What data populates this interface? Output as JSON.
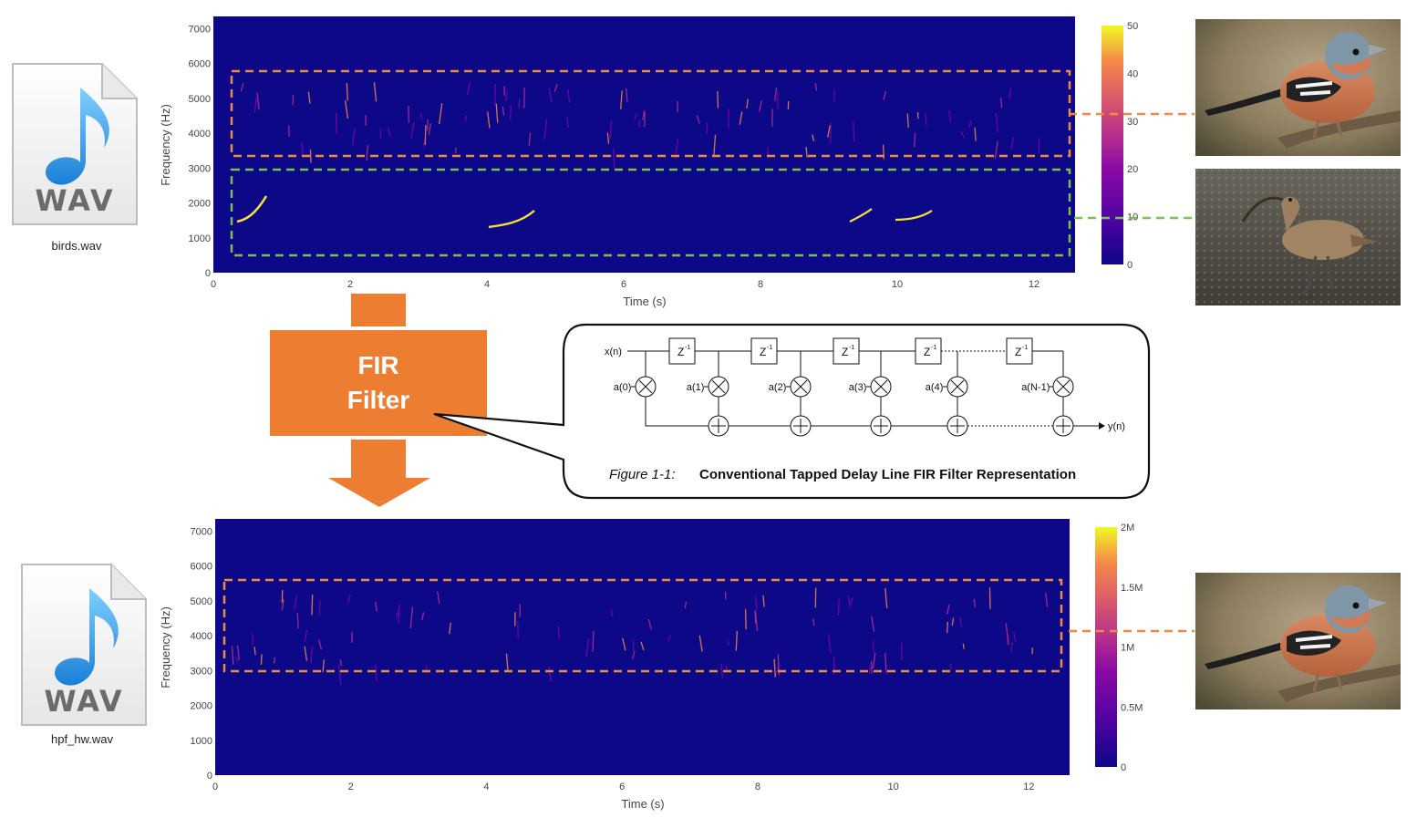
{
  "colors": {
    "spectro_bg": "#0d0887",
    "orange_box": "#f08a3c",
    "green_box": "#7cc24a",
    "fir_block": "#ed7d31"
  },
  "files": {
    "input": {
      "icon_text": "WAV",
      "name": "birds.wav",
      "icon": "wav-file-icon"
    },
    "output": {
      "icon_text": "WAV",
      "name": "hpf_hw.wav",
      "icon": "wav-file-icon"
    }
  },
  "fir_block": {
    "line1": "FIR",
    "line2": "Filter"
  },
  "fir_diagram": {
    "input_label": "x(n)",
    "output_label": "y(n)",
    "delay_label": "Z",
    "delay_exp": "-1",
    "coeffs": [
      "a(0)",
      "a(1)",
      "a(2)",
      "a(3)",
      "a(4)",
      "a(N-1)"
    ],
    "caption_prefix": "Figure 1-1:",
    "caption_title": "Conventional Tapped Delay Line FIR Filter Representation"
  },
  "chart_data": [
    {
      "type": "heatmap",
      "xlabel": "Time (s)",
      "ylabel": "Frequency (Hz)",
      "x_ticks": [
        "0",
        "2",
        "4",
        "6",
        "8",
        "10",
        "12"
      ],
      "y_ticks": [
        "0",
        "1000",
        "2000",
        "3000",
        "4000",
        "5000",
        "6000",
        "7000"
      ],
      "xlim": [
        0,
        12.6
      ],
      "ylim": [
        0,
        7350
      ],
      "colorbar_ticks": [
        "0",
        "10",
        "20",
        "30",
        "40",
        "50"
      ],
      "colorbar_range": [
        0,
        50
      ],
      "highlight_bands": [
        {
          "color": "orange",
          "freq_range": [
            3300,
            5800
          ]
        },
        {
          "color": "green",
          "freq_range": [
            500,
            2900
          ]
        }
      ]
    },
    {
      "type": "heatmap",
      "xlabel": "Time (s)",
      "ylabel": "Frequency (Hz)",
      "x_ticks": [
        "0",
        "2",
        "4",
        "6",
        "8",
        "10",
        "12"
      ],
      "y_ticks": [
        "0",
        "1000",
        "2000",
        "3000",
        "4000",
        "5000",
        "6000",
        "7000"
      ],
      "xlim": [
        0,
        12.6
      ],
      "ylim": [
        0,
        7350
      ],
      "colorbar_ticks": [
        "0",
        "0.5M",
        "1M",
        "1.5M",
        "2M"
      ],
      "colorbar_range": [
        0,
        2000000
      ],
      "highlight_bands": [
        {
          "color": "orange",
          "freq_range": [
            2950,
            5650
          ]
        }
      ]
    }
  ],
  "photos": [
    {
      "name": "chaffinch-photo-top"
    },
    {
      "name": "curlew-photo"
    },
    {
      "name": "chaffinch-photo-bottom"
    }
  ]
}
